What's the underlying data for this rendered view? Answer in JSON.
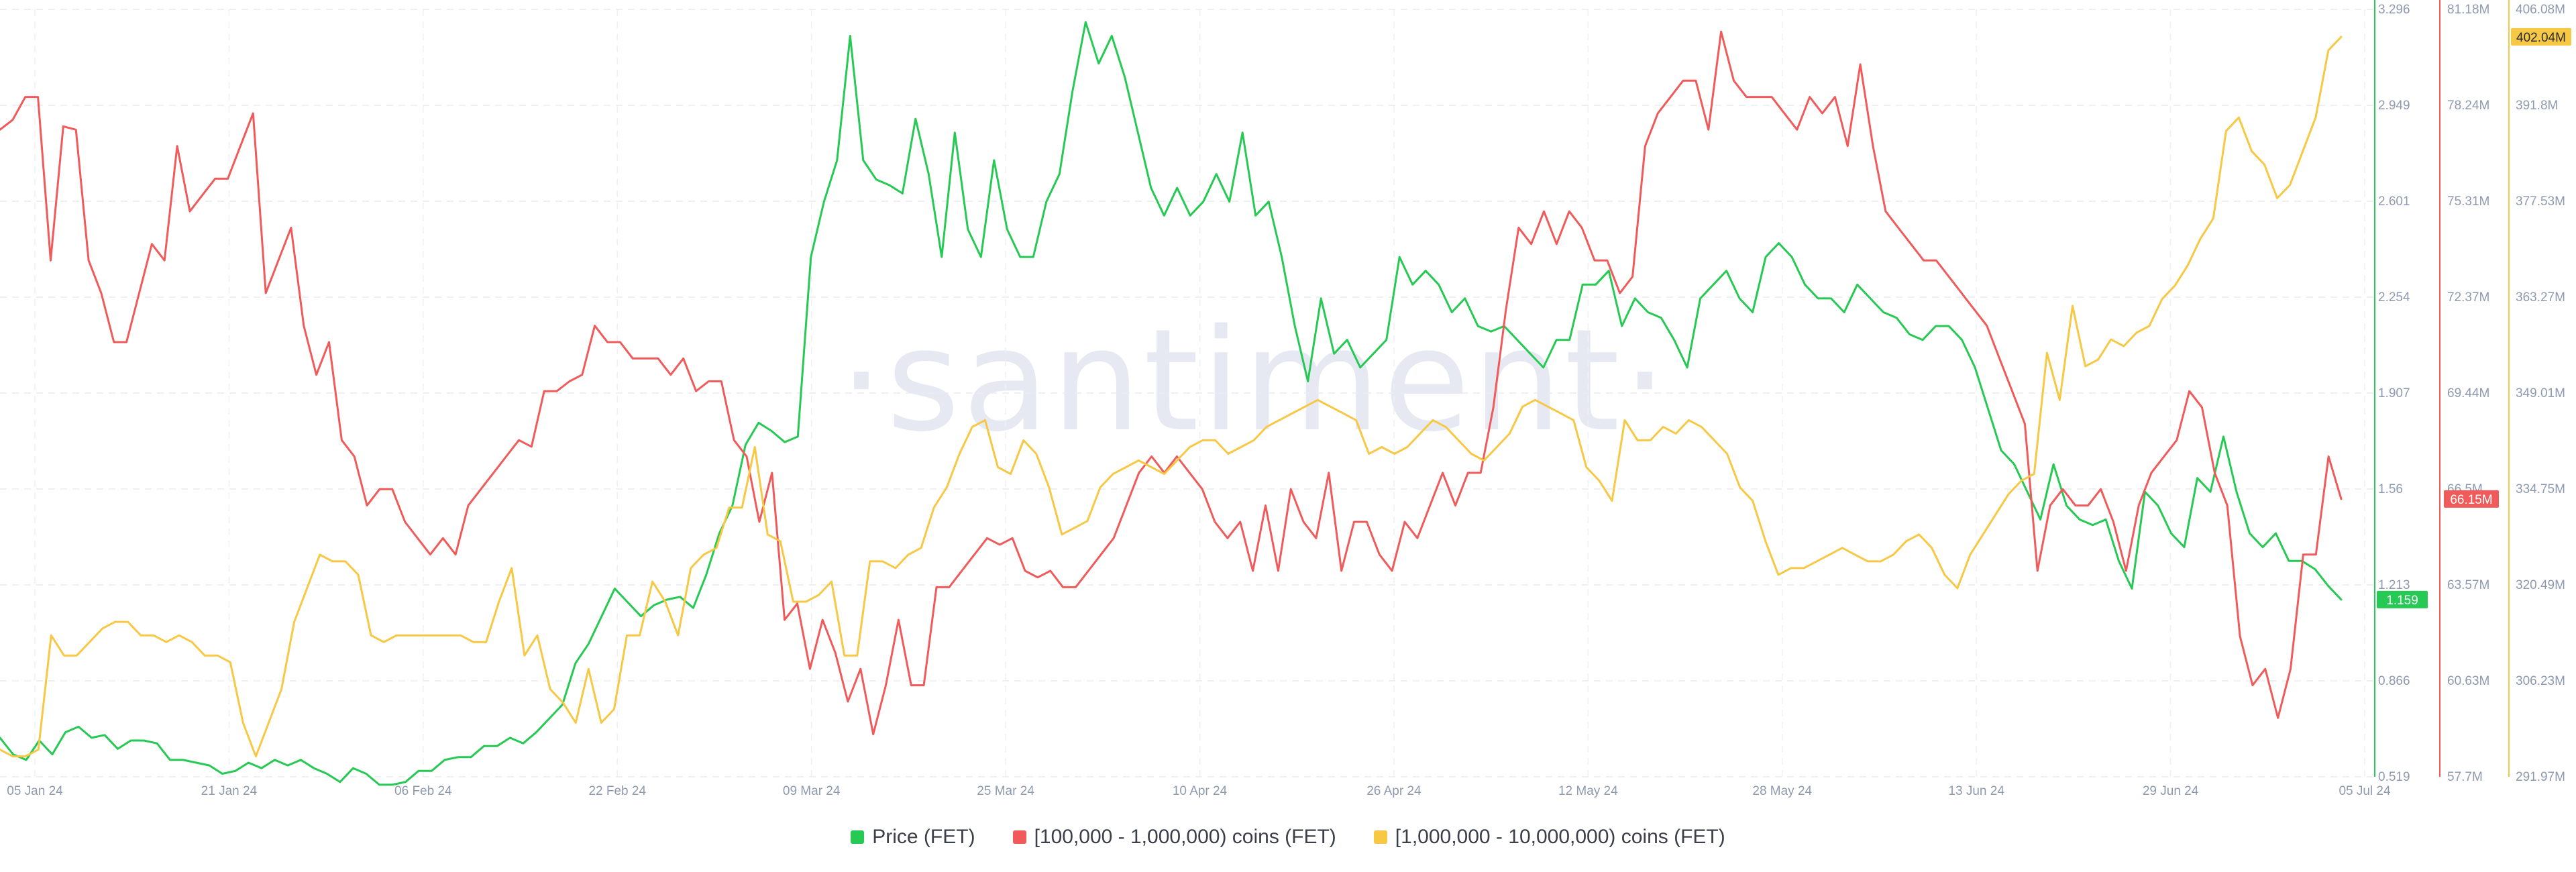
{
  "watermark": "·santiment·",
  "legend": [
    {
      "label": "Price (FET)",
      "color": "#26c953"
    },
    {
      "label": "[100,000 - 1,000,000) coins (FET)",
      "color": "#f05a5a"
    },
    {
      "label": "[1,000,000 - 10,000,000) coins (FET)",
      "color": "#f7c844"
    }
  ],
  "chart_data": {
    "type": "line",
    "x_ticks": [
      "05 Jan 24",
      "21 Jan 24",
      "06 Feb 24",
      "22 Feb 24",
      "09 Mar 24",
      "25 Mar 24",
      "10 Apr 24",
      "26 Apr 24",
      "12 May 24",
      "28 May 24",
      "13 Jun 24",
      "29 Jun 24",
      "05 Jul 24"
    ],
    "x_range": [
      "05 Jan 24",
      "05 Jul 24"
    ],
    "grid": true,
    "legend_position": "bottom-center",
    "axes": [
      {
        "id": "price",
        "color": "#26c953",
        "range": [
          0.519,
          3.296
        ],
        "ticks": [
          "0.519",
          "0.866",
          "1.213",
          "1.56",
          "1.907",
          "2.254",
          "2.601",
          "2.949",
          "3.296"
        ],
        "last_value_label": "1.159"
      },
      {
        "id": "mid",
        "color": "#f05a5a",
        "range": [
          57.7,
          81.18
        ],
        "ticks": [
          "57.7M",
          "60.63M",
          "63.57M",
          "66.5M",
          "69.44M",
          "72.37M",
          "75.31M",
          "78.24M",
          "81.18M"
        ],
        "last_value_label": "66.15M"
      },
      {
        "id": "large",
        "color": "#f7c844",
        "range": [
          291.97,
          406.08
        ],
        "ticks": [
          "291.97M",
          "306.23M",
          "320.49M",
          "334.75M",
          "349.01M",
          "363.27M",
          "377.53M",
          "391.8M",
          "406.08M"
        ],
        "last_value_label": "402.04M"
      }
    ],
    "series": [
      {
        "name": "Price (FET)",
        "axis": "price",
        "color": "#26c953",
        "values": [
          0.66,
          0.6,
          0.58,
          0.65,
          0.6,
          0.68,
          0.7,
          0.66,
          0.67,
          0.62,
          0.65,
          0.65,
          0.64,
          0.58,
          0.58,
          0.57,
          0.56,
          0.53,
          0.54,
          0.57,
          0.55,
          0.58,
          0.56,
          0.58,
          0.55,
          0.53,
          0.5,
          0.55,
          0.53,
          0.49,
          0.49,
          0.5,
          0.54,
          0.54,
          0.58,
          0.59,
          0.59,
          0.63,
          0.63,
          0.66,
          0.64,
          0.68,
          0.73,
          0.78,
          0.93,
          1.0,
          1.1,
          1.2,
          1.15,
          1.1,
          1.14,
          1.16,
          1.17,
          1.13,
          1.25,
          1.4,
          1.5,
          1.72,
          1.8,
          1.77,
          1.73,
          1.75,
          2.4,
          2.6,
          2.75,
          3.2,
          2.75,
          2.68,
          2.66,
          2.63,
          2.9,
          2.7,
          2.4,
          2.85,
          2.5,
          2.4,
          2.75,
          2.5,
          2.4,
          2.4,
          2.6,
          2.7,
          3.0,
          3.25,
          3.1,
          3.2,
          3.05,
          2.85,
          2.65,
          2.55,
          2.65,
          2.55,
          2.6,
          2.7,
          2.6,
          2.85,
          2.55,
          2.6,
          2.4,
          2.15,
          1.95,
          2.25,
          2.05,
          2.1,
          2.0,
          2.05,
          2.1,
          2.4,
          2.3,
          2.35,
          2.3,
          2.2,
          2.25,
          2.15,
          2.13,
          2.15,
          2.1,
          2.05,
          2.0,
          2.1,
          2.1,
          2.3,
          2.3,
          2.35,
          2.15,
          2.25,
          2.2,
          2.18,
          2.1,
          2.0,
          2.25,
          2.3,
          2.35,
          2.25,
          2.2,
          2.4,
          2.45,
          2.4,
          2.3,
          2.25,
          2.25,
          2.2,
          2.3,
          2.25,
          2.2,
          2.18,
          2.12,
          2.1,
          2.15,
          2.15,
          2.1,
          2.0,
          1.85,
          1.7,
          1.65,
          1.55,
          1.45,
          1.65,
          1.5,
          1.45,
          1.43,
          1.45,
          1.3,
          1.2,
          1.55,
          1.5,
          1.4,
          1.35,
          1.6,
          1.55,
          1.75,
          1.55,
          1.4,
          1.35,
          1.4,
          1.3,
          1.3,
          1.27,
          1.21,
          1.16
        ]
      },
      {
        "name": "[100,000 - 1,000,000) coins (FET)",
        "axis": "mid",
        "color": "#f05a5a",
        "values": [
          77.5,
          77.8,
          78.5,
          78.5,
          73.5,
          77.6,
          77.5,
          73.5,
          72.5,
          71.0,
          71.0,
          72.5,
          74.0,
          73.5,
          77.0,
          75.0,
          75.5,
          76.0,
          76.0,
          77.0,
          78.0,
          72.5,
          73.5,
          74.5,
          71.5,
          70.0,
          71.0,
          68.0,
          67.5,
          66.0,
          66.5,
          66.5,
          65.5,
          65.0,
          64.5,
          65.0,
          64.5,
          66.0,
          66.5,
          67.0,
          67.5,
          68.0,
          67.8,
          69.5,
          69.5,
          69.8,
          70.0,
          71.5,
          71.0,
          71.0,
          70.5,
          70.5,
          70.5,
          70.0,
          70.5,
          69.5,
          69.8,
          69.8,
          68.0,
          67.5,
          65.5,
          67.0,
          62.5,
          63.0,
          61.0,
          62.5,
          61.5,
          60.0,
          61.0,
          59.0,
          60.5,
          62.5,
          60.5,
          60.5,
          63.5,
          63.5,
          64.0,
          64.5,
          65.0,
          64.8,
          65.0,
          64.0,
          63.8,
          64.0,
          63.5,
          63.5,
          64.0,
          64.5,
          65.0,
          66.0,
          67.0,
          67.5,
          67.0,
          67.5,
          67.0,
          66.5,
          65.5,
          65.0,
          65.5,
          64.0,
          66.0,
          64.0,
          66.5,
          65.5,
          65.0,
          67.0,
          64.0,
          65.5,
          65.5,
          64.5,
          64.0,
          65.5,
          65.0,
          66.0,
          67.0,
          66.0,
          67.0,
          67.0,
          69.0,
          72.0,
          74.5,
          74.0,
          75.0,
          74.0,
          75.0,
          74.5,
          73.5,
          73.5,
          72.5,
          73.0,
          77.0,
          78.0,
          78.5,
          79.0,
          79.0,
          77.5,
          80.5,
          79.0,
          78.5,
          78.5,
          78.5,
          78.0,
          77.5,
          78.5,
          78.0,
          78.5,
          77.0,
          79.5,
          77.0,
          75.0,
          74.5,
          74.0,
          73.5,
          73.5,
          73.0,
          72.5,
          72.0,
          71.5,
          70.5,
          69.5,
          68.5,
          64.0,
          66.0,
          66.5,
          66.0,
          66.0,
          66.5,
          65.5,
          64.0,
          66.0,
          67.0,
          67.5,
          68.0,
          69.5,
          69.0,
          67.0,
          66.0,
          62.0,
          60.5,
          61.0,
          59.5,
          61.0,
          64.5,
          64.5,
          67.5,
          66.2
        ]
      },
      {
        "name": "[1,000,000 - 10,000,000) coins (FET)",
        "axis": "large",
        "color": "#f7c844",
        "values": [
          296,
          295,
          295,
          296,
          313,
          310,
          310,
          312,
          314,
          315,
          315,
          313,
          313,
          312,
          313,
          312,
          310,
          310,
          309,
          300,
          295,
          300,
          305,
          315,
          320,
          325,
          324,
          324,
          322,
          313,
          312,
          313,
          313,
          313,
          313,
          313,
          313,
          312,
          312,
          318,
          323,
          310,
          313,
          305,
          303,
          300,
          308,
          300,
          302,
          313,
          313,
          321,
          318,
          313,
          323,
          325,
          326,
          332,
          332,
          341,
          328,
          327,
          318,
          318,
          319,
          321,
          310,
          310,
          324,
          324,
          323,
          325,
          326,
          332,
          335,
          340,
          344,
          345,
          338,
          337,
          342,
          340,
          335,
          328,
          329,
          330,
          335,
          337,
          338,
          339,
          338,
          337,
          339,
          341,
          342,
          342,
          340,
          341,
          342,
          344,
          345,
          346,
          347,
          348,
          347,
          346,
          345,
          340,
          341,
          340,
          341,
          343,
          345,
          344,
          342,
          340,
          339,
          341,
          343,
          347,
          348,
          347,
          346,
          345,
          338,
          336,
          333,
          345,
          342,
          342,
          344,
          343,
          345,
          344,
          342,
          340,
          335,
          333,
          327,
          322,
          323,
          323,
          324,
          325,
          326,
          325,
          324,
          324,
          325,
          327,
          328,
          326,
          322,
          320,
          325,
          328,
          331,
          334,
          336,
          337,
          355,
          348,
          362,
          353,
          354,
          357,
          356,
          358,
          359,
          363,
          365,
          368,
          372,
          375,
          388,
          390,
          385,
          383,
          378,
          380,
          385,
          390,
          400,
          402
        ]
      }
    ]
  }
}
